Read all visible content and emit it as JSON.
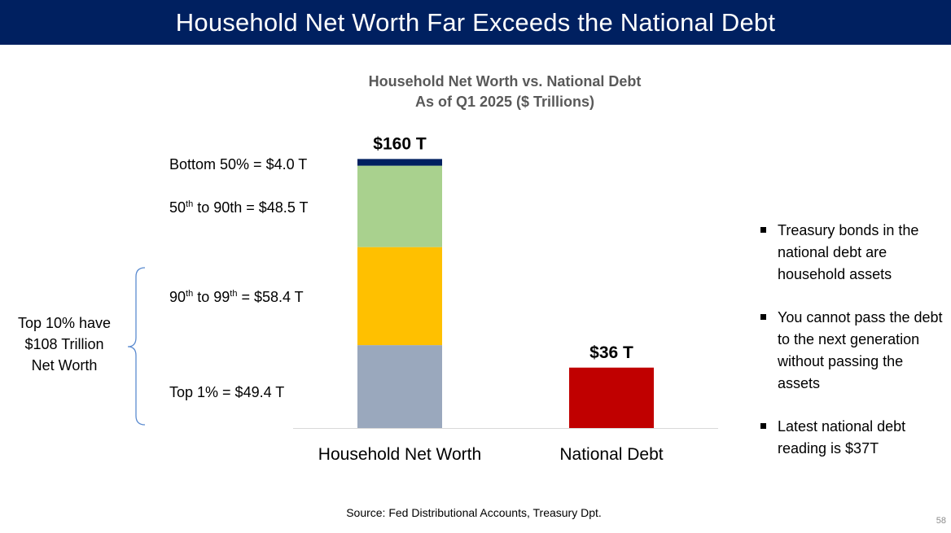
{
  "slide": {
    "title": "Household Net Worth Far Exceeds the National Debt",
    "source": "Source:  Fed Distributional Accounts, Treasury Dpt.",
    "page_number": "58"
  },
  "chart_data": {
    "type": "bar",
    "title_line1": "Household Net Worth vs. National Debt",
    "title_line2": "As of Q1 2025 ($ Trillions)",
    "categories": [
      "Household Net Worth",
      "National Debt"
    ],
    "series": [
      {
        "name": "Top 1%",
        "values": [
          49.4,
          0
        ],
        "color": "#9aa8bd"
      },
      {
        "name": "90th to 99th",
        "values": [
          58.4,
          0
        ],
        "color": "#ffc000"
      },
      {
        "name": "50th to 90th",
        "values": [
          48.5,
          0
        ],
        "color": "#a9d18e"
      },
      {
        "name": "Bottom 50%",
        "values": [
          4.0,
          0
        ],
        "color": "#002060"
      },
      {
        "name": "",
        "values": [
          0,
          36
        ],
        "color": "#c00000"
      }
    ],
    "totals": [
      160,
      36
    ],
    "total_labels": [
      "$160 T",
      "$36 T"
    ],
    "segment_labels": {
      "bottom50": "Bottom 50% = $4.0 T",
      "p50_90_a": "50",
      "p50_90_sup": "th",
      "p50_90_b": " to 90th = $48.5 T",
      "p90_99_a": "90",
      "p90_99_sup1": "th",
      "p90_99_b": "  to 99",
      "p90_99_sup2": "th",
      "p90_99_c": " = $58.4 T",
      "top1": "Top 1% = $49.4 T"
    },
    "bracket_label": [
      "Top 10% have",
      "$108 Trillion",
      "Net Worth"
    ],
    "ylim": [
      0,
      160
    ],
    "grid": false,
    "legend": "none"
  },
  "bullets": [
    "Treasury bonds in the national debt are household assets",
    "You cannot pass the debt to the next generation without passing the assets",
    "Latest national debt reading is $37T"
  ]
}
